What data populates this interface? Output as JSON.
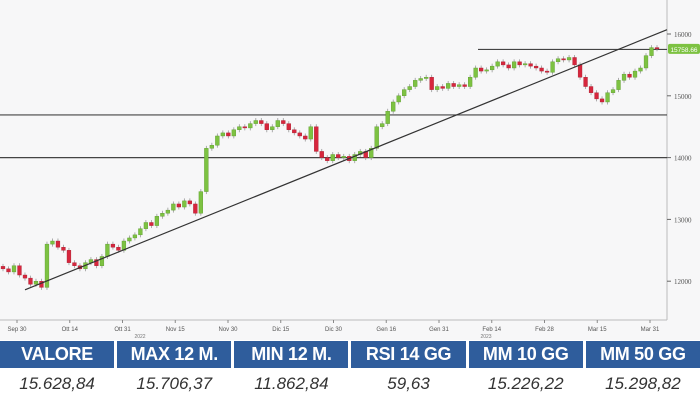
{
  "chart_data": {
    "type": "candlestick",
    "ylim": [
      11800,
      16100
    ],
    "y_ticks": [
      "16000",
      "15000",
      "14000",
      "13000",
      "12000"
    ],
    "y_tick_values": [
      16000,
      15000,
      14000,
      13000,
      12000
    ],
    "x_ticks": [
      "Sep 30",
      "Ott 14",
      "Ott 31",
      "Nov 15",
      "Nov 30",
      "Dic 15",
      "Dic 30",
      "Gen 16",
      "Gen 31",
      "Feb 14",
      "Feb 28",
      "Mar 15",
      "Mar 31"
    ],
    "year_labels": [
      "2022",
      "2023"
    ],
    "last_price_label": "15758.66",
    "closes": [
      12200,
      12150,
      12250,
      12100,
      12050,
      11950,
      12000,
      11900,
      12600,
      12650,
      12550,
      12500,
      12300,
      12250,
      12200,
      12300,
      12350,
      12250,
      12400,
      12600,
      12550,
      12500,
      12650,
      12700,
      12750,
      12850,
      12950,
      12900,
      13050,
      13100,
      13150,
      13250,
      13200,
      13300,
      13250,
      13100,
      13450,
      14150,
      14200,
      14350,
      14400,
      14350,
      14450,
      14500,
      14480,
      14550,
      14600,
      14550,
      14450,
      14500,
      14600,
      14550,
      14450,
      14400,
      14350,
      14300,
      14500,
      14100,
      14000,
      13950,
      14050,
      14000,
      14020,
      13950,
      14050,
      14100,
      14000,
      14150,
      14500,
      14550,
      14750,
      14900,
      15000,
      15100,
      15150,
      15250,
      15280,
      15300,
      15100,
      15150,
      15120,
      15200,
      15150,
      15180,
      15150,
      15300,
      15450,
      15400,
      15420,
      15480,
      15550,
      15500,
      15450,
      15550,
      15500,
      15520,
      15480,
      15450,
      15400,
      15380,
      15550,
      15600,
      15580,
      15620,
      15500,
      15300,
      15150,
      15050,
      14950,
      14900,
      15050,
      15100,
      15250,
      15350,
      15300,
      15400,
      15450,
      15650,
      15780,
      15760
    ],
    "horizontal_levels": [
      14690,
      14000
    ],
    "resistance_level": 15750,
    "trendline": {
      "start": 11860,
      "end": 16070
    },
    "grid": false,
    "colors": {
      "up": "#7dc242",
      "down": "#d7263d",
      "line": "#333333",
      "price_tag": "#7dc242"
    }
  },
  "table": {
    "headers": [
      "VALORE",
      "MAX 12 M.",
      "MIN 12 M.",
      "RSI 14 GG",
      "MM 10 GG",
      "MM 50 GG"
    ],
    "values": [
      "15.628,84",
      "15.706,37",
      "11.862,84",
      "59,63",
      "15.226,22",
      "15.298,82"
    ],
    "header_color": "#2f5d9c"
  }
}
